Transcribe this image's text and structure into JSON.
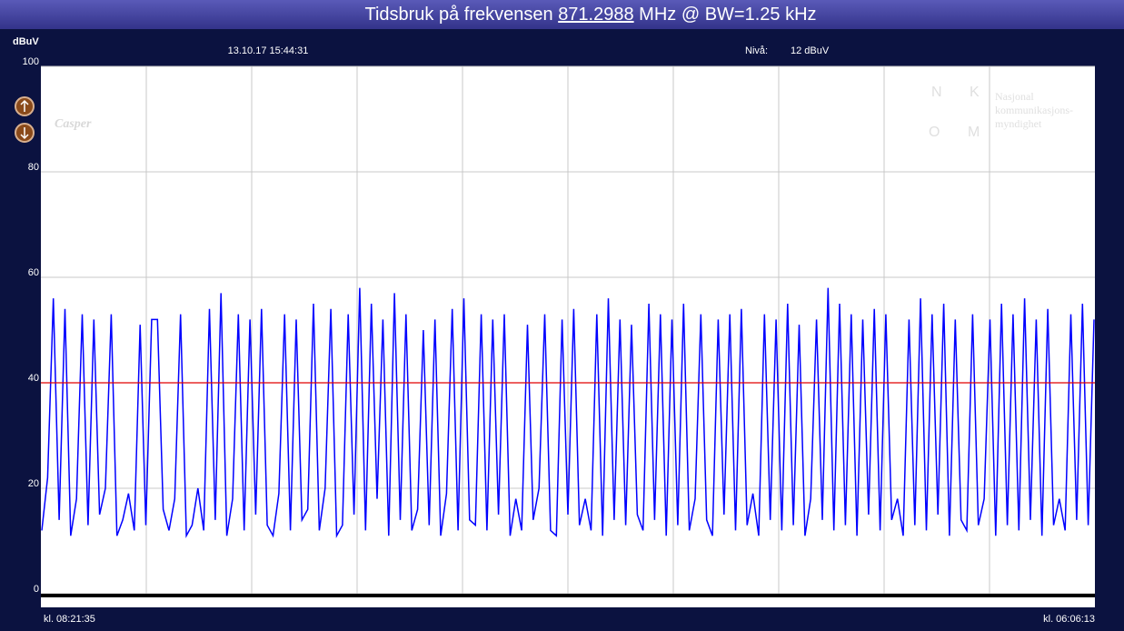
{
  "chart_data": {
    "type": "line",
    "title_prefix": "Tidsbruk på frekvensen",
    "frequency": "871.2988",
    "title_suffix": "MHz @ BW=1.25 kHz",
    "y_label": "dBuV",
    "timestamp": "13.10.17 15:44:31",
    "level_label": "Nivå:",
    "level_value": "12 dBuV",
    "x_start_label": "kl. 08:21:35",
    "x_end_label": "kl. 06:06:13",
    "logo_left": "Casper",
    "logo_right": [
      "Nasjonal",
      "kommunikasjons-",
      "myndighet"
    ],
    "logo_letters": [
      "N",
      "K",
      "O",
      "M"
    ],
    "ylim": [
      0,
      100
    ],
    "yticks": [
      0,
      20,
      40,
      60,
      80,
      100
    ],
    "grid": true,
    "color": "#0000ff",
    "threshold": 40,
    "threshold_color": "#e00000",
    "values": [
      12,
      22,
      56,
      14,
      54,
      11,
      18,
      53,
      13,
      52,
      15,
      20,
      53,
      11,
      14,
      19,
      12,
      51,
      13,
      52,
      52,
      16,
      12,
      18,
      53,
      11,
      13,
      20,
      12,
      54,
      14,
      57,
      11,
      18,
      53,
      12,
      52,
      15,
      54,
      13,
      11,
      19,
      53,
      12,
      52,
      14,
      16,
      55,
      12,
      20,
      54,
      11,
      13,
      53,
      15,
      58,
      12,
      55,
      18,
      52,
      11,
      57,
      14,
      53,
      12,
      16,
      50,
      13,
      52,
      11,
      19,
      54,
      12,
      56,
      14,
      13,
      53,
      12,
      52,
      15,
      53,
      11,
      18,
      12,
      51,
      14,
      20,
      53,
      12,
      11,
      52,
      15,
      54,
      13,
      18,
      12,
      53,
      11,
      56,
      14,
      52,
      13,
      51,
      15,
      12,
      55,
      14,
      53,
      11,
      52,
      13,
      55,
      12,
      18,
      53,
      14,
      11,
      52,
      15,
      53,
      12,
      54,
      13,
      19,
      11,
      53,
      14,
      52,
      12,
      55,
      13,
      51,
      11,
      18,
      52,
      14,
      58,
      12,
      55,
      13,
      53,
      11,
      52,
      15,
      54,
      12,
      53,
      14,
      18,
      11,
      52,
      13,
      56,
      12,
      53,
      15,
      55,
      11,
      52,
      14,
      12,
      53,
      13,
      18,
      52,
      11,
      55,
      13,
      53,
      12,
      56,
      14,
      52,
      11,
      54,
      13,
      18,
      12,
      53,
      14,
      55,
      13,
      52
    ]
  }
}
